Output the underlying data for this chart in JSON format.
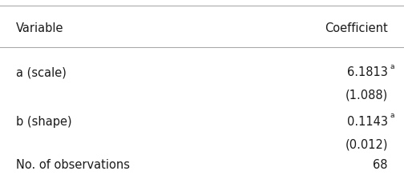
{
  "col_headers": [
    "Variable",
    "Coefficient"
  ],
  "rows": [
    {
      "variable": "a (scale)",
      "coef_main": "6.1813",
      "coef_super": "a",
      "coef_se": "(1.088)"
    },
    {
      "variable": "b (shape)",
      "coef_main": "0.1143",
      "coef_super": "a",
      "coef_se": "(0.012)"
    },
    {
      "variable": "No. of observations",
      "coef_main": "68",
      "coef_super": "",
      "coef_se": ""
    }
  ],
  "bg_color": "#ffffff",
  "text_color": "#1a1a1a",
  "line_color": "#aaaaaa",
  "header_fontsize": 10.5,
  "body_fontsize": 10.5,
  "super_fontsize": 6.5,
  "fig_width": 5.04,
  "fig_height": 2.19
}
